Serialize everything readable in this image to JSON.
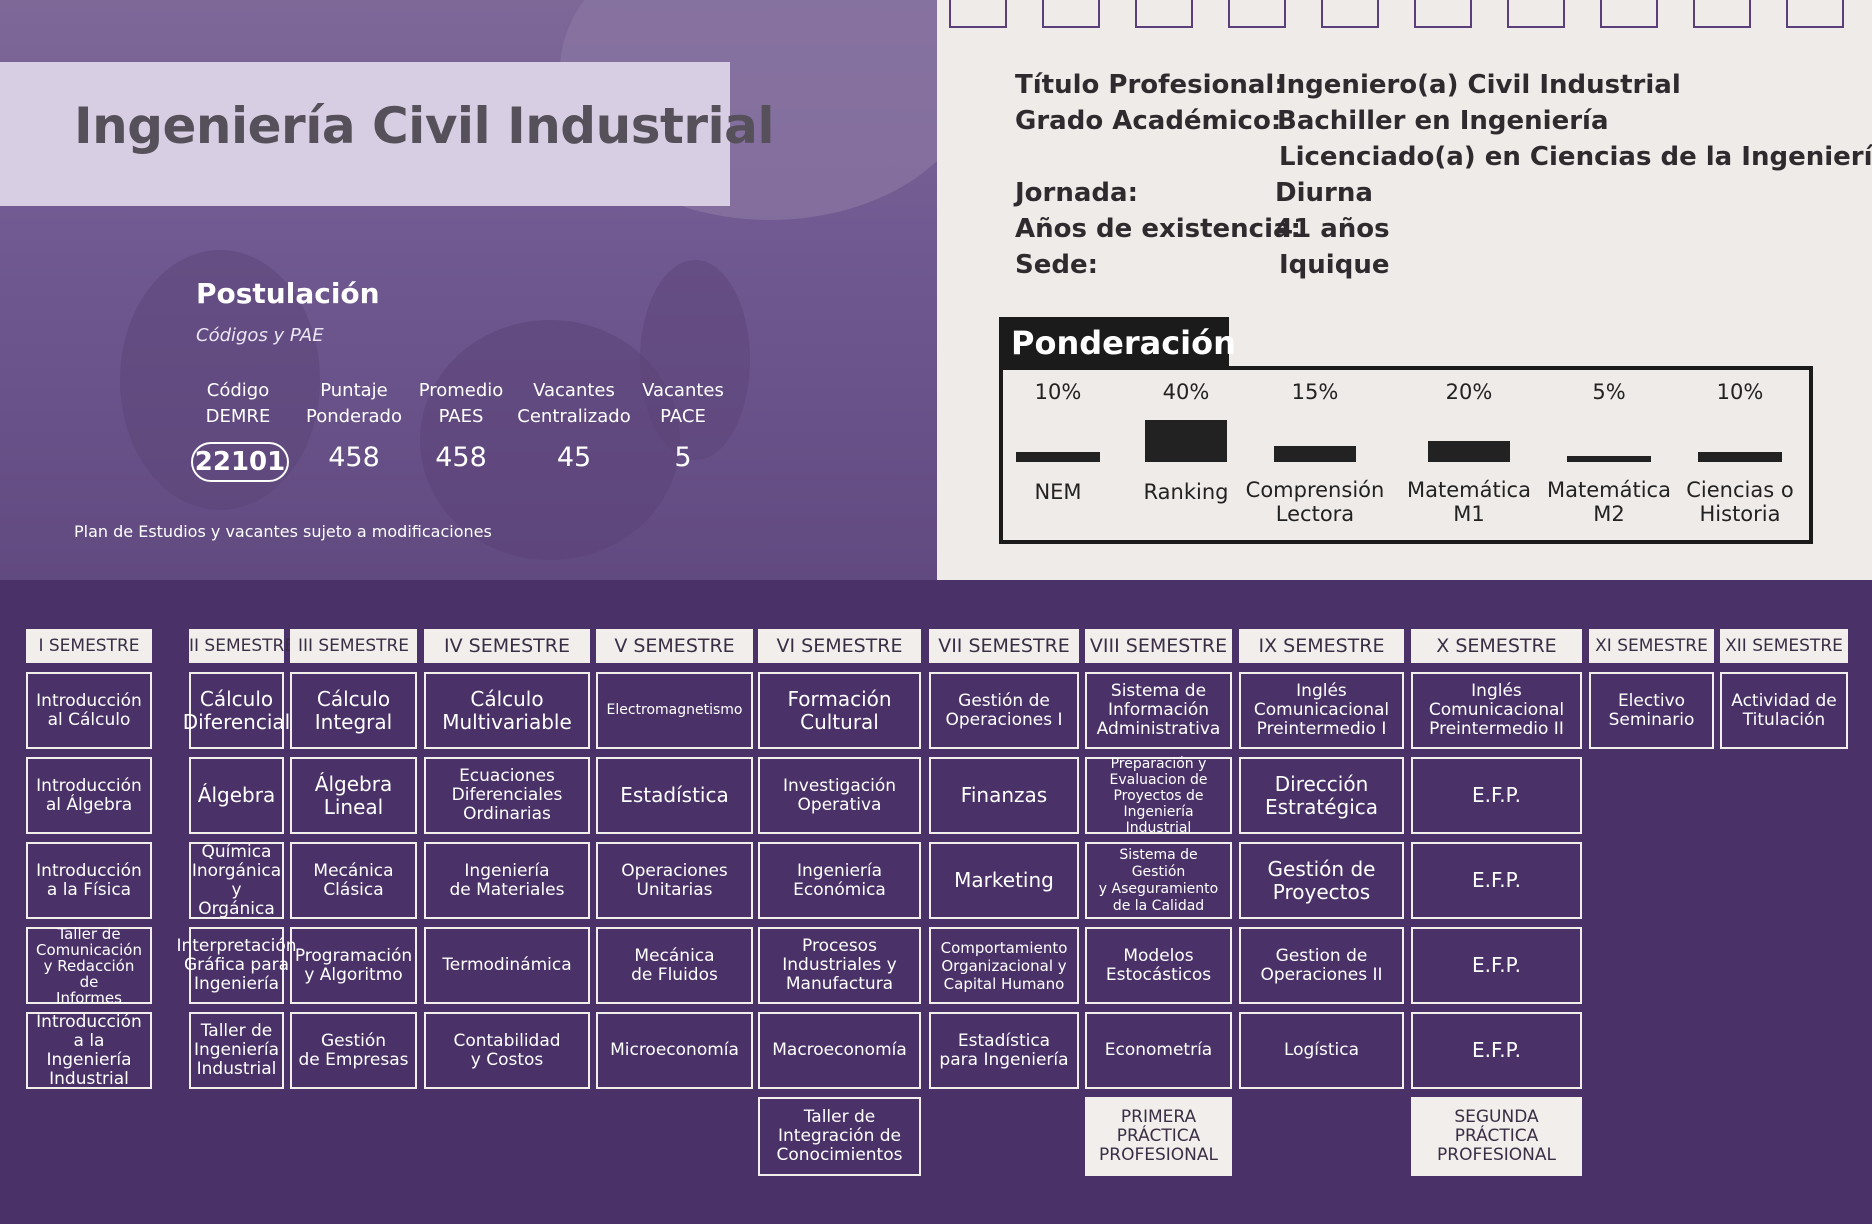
{
  "header": {
    "title": "Ingeniería Civil Industrial",
    "postulacion_title": "Postulación",
    "postulacion_sub": "Códigos y PAE",
    "columns": [
      {
        "label_l1": "Código",
        "label_l2": "DEMRE",
        "value": "22101"
      },
      {
        "label_l1": "Puntaje",
        "label_l2": "Ponderado",
        "value": "458"
      },
      {
        "label_l1": "Promedio",
        "label_l2": "PAES",
        "value": "458"
      },
      {
        "label_l1": "Vacantes",
        "label_l2": "Centralizado",
        "value": "45"
      },
      {
        "label_l1": "Vacantes",
        "label_l2": "PACE",
        "value": "5"
      }
    ],
    "plan_note": "Plan de Estudios y vacantes sujeto a modificaciones"
  },
  "info": {
    "titulo_label": "Título Profesional:",
    "titulo_val": "Ingeniero(a) Civil Industrial",
    "grado_label": "Grado Académico:",
    "grado_val1": "Bachiller en Ingeniería",
    "grado_val2": "Licenciado(a) en Ciencias de la Ingeniería",
    "jornada_label": "Jornada:",
    "jornada_val": "Diurna",
    "anos_label": "Años de existencia:",
    "anos_val": "41 años",
    "sede_label": "Sede:",
    "sede_val": "Iquique"
  },
  "ponderacion": {
    "title": "Ponderación",
    "items": [
      {
        "pct": "10%",
        "value": 10,
        "l1": "NEM",
        "l2": ""
      },
      {
        "pct": "40%",
        "value": 40,
        "l1": "Ranking",
        "l2": ""
      },
      {
        "pct": "15%",
        "value": 15,
        "l1": "Comprensión",
        "l2": "Lectora"
      },
      {
        "pct": "20%",
        "value": 20,
        "l1": "Matemática",
        "l2": "M1"
      },
      {
        "pct": "5%",
        "value": 5,
        "l1": "Matemática",
        "l2": "M2"
      },
      {
        "pct": "10%",
        "value": 10,
        "l1": "Ciencias o",
        "l2": "Historia"
      }
    ]
  },
  "semesters": [
    {
      "name": "I SEMESTRE",
      "courses": [
        "Introducción\nal Cálculo",
        "Introducción\nal Álgebra",
        "Introducción\na la Física",
        "Taller de\nComunicación\ny Redacción de\nInformes",
        "Introducción\na la Ingeniería\nIndustrial"
      ]
    },
    {
      "name": "II SEMESTRE",
      "courses": [
        "Cálculo\nDiferencial",
        "Álgebra",
        "Química\nInorgánica\ny Orgánica",
        "Interpretación\nGráfica para\nIngeniería",
        "Taller de\nIngeniería\nIndustrial"
      ]
    },
    {
      "name": "III SEMESTRE",
      "courses": [
        "Cálculo\nIntegral",
        "Álgebra\nLineal",
        "Mecánica\nClásica",
        "Programación\ny Algoritmo",
        "Gestión\nde Empresas"
      ]
    },
    {
      "name": "IV SEMESTRE",
      "courses": [
        "Cálculo\nMultivariable",
        "Ecuaciones\nDiferenciales\nOrdinarias",
        "Ingeniería\nde Materiales",
        "Termodinámica",
        "Contabilidad\ny Costos"
      ]
    },
    {
      "name": "V SEMESTRE",
      "courses": [
        "Electromagnetismo",
        "Estadística",
        "Operaciones\nUnitarias",
        "Mecánica\nde Fluidos",
        "Microeconomía"
      ]
    },
    {
      "name": "VI SEMESTRE",
      "courses": [
        "Formación\nCultural",
        "Investigación\nOperativa",
        "Ingeniería\nEconómica",
        "Procesos\nIndustriales y\nManufactura",
        "Macroeconomía",
        "Taller de\nIntegración de\nConocimientos"
      ]
    },
    {
      "name": "VII SEMESTRE",
      "courses": [
        "Gestión de\nOperaciones I",
        "Finanzas",
        "Marketing",
        "Comportamiento\nOrganizacional y\nCapital Humano",
        "Estadística\npara Ingeniería"
      ]
    },
    {
      "name": "VIII SEMESTRE",
      "courses": [
        "Sistema de\nInformación\nAdministrativa",
        "Preparación y\nEvaluacion de\nProyectos de\nIngeniería Industrial",
        "Sistema de Gestión\ny Aseguramiento\nde la Calidad",
        "Modelos\nEstocásticos",
        "Econometría",
        "PRIMERA\nPRÁCTICA\nPROFESIONAL"
      ]
    },
    {
      "name": "IX SEMESTRE",
      "courses": [
        "Inglés\nComunicacional\nPreintermedio I",
        "Dirección\nEstratégica",
        "Gestión de\nProyectos",
        "Gestion de\nOperaciones II",
        "Logística"
      ]
    },
    {
      "name": "X SEMESTRE",
      "courses": [
        "Inglés\nComunicacional\nPreintermedio II",
        "E.F.P.",
        "E.F.P.",
        "E.F.P.",
        "E.F.P.",
        "SEGUNDA\nPRÁCTICA\nPROFESIONAL"
      ]
    },
    {
      "name": "XI SEMESTRE",
      "courses": [
        "Electivo\nSeminario"
      ]
    },
    {
      "name": "XII SEMESTRE",
      "courses": [
        "Actividad de\nTitulación"
      ]
    }
  ]
}
